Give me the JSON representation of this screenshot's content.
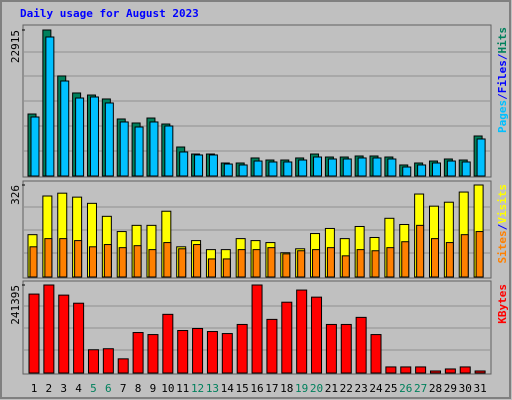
{
  "chart_data": [
    {
      "type": "bar",
      "title": "Daily usage for August 2023",
      "ylim": [
        0,
        22915
      ],
      "yticks": [
        22915
      ],
      "legend_items": [
        {
          "text": "Pages",
          "color": "#00c0ff"
        },
        {
          "text": "/",
          "color": "#0000ff"
        },
        {
          "text": "Files",
          "color": "#0000ff"
        },
        {
          "text": "/",
          "color": "#0000ff"
        },
        {
          "text": "Hits",
          "color": "#00805c"
        }
      ],
      "series": [
        {
          "name": "Hits",
          "color": "#00805c",
          "values": [
            9730,
            22915,
            15700,
            13030,
            12710,
            12090,
            8950,
            8320,
            9100,
            8160,
            4550,
            3450,
            3450,
            2040,
            2040,
            2830,
            2510,
            2510,
            2830,
            3450,
            2980,
            2980,
            3140,
            3140,
            2980,
            1730,
            2040,
            2350,
            2670,
            2510,
            6280
          ]
        },
        {
          "name": "Pages",
          "color": "#00c0ff",
          "values": [
            9260,
            21816,
            14910,
            12240,
            12400,
            11460,
            8480,
            7690,
            8480,
            7850,
            3770,
            3300,
            3300,
            1880,
            1730,
            2350,
            2200,
            2200,
            2510,
            2980,
            2670,
            2670,
            2830,
            2830,
            2670,
            1410,
            1730,
            2040,
            2350,
            2200,
            5810
          ]
        }
      ]
    },
    {
      "type": "bar",
      "ylim": [
        0,
        326
      ],
      "yticks": [
        326
      ],
      "legend_items": [
        {
          "text": "Sites",
          "color": "#ff8000"
        },
        {
          "text": "/",
          "color": "#0000ff"
        },
        {
          "text": "Visits",
          "color": "#ffff00"
        }
      ],
      "series": [
        {
          "name": "Visits",
          "color": "#ffff00",
          "values": [
            150,
            287,
            297,
            283,
            261,
            215,
            161,
            183,
            183,
            233,
            107,
            129,
            97,
            97,
            136,
            129,
            122,
            86,
            100,
            154,
            172,
            136,
            179,
            140,
            208,
            186,
            294,
            251,
            265,
            301,
            326
          ]
        },
        {
          "name": "Sites",
          "color": "#ff8000",
          "values": [
            107,
            136,
            136,
            129,
            107,
            115,
            104,
            111,
            97,
            122,
            100,
            115,
            64,
            64,
            97,
            97,
            104,
            82,
            93,
            97,
            104,
            75,
            97,
            93,
            104,
            125,
            183,
            136,
            122,
            150,
            161
          ]
        }
      ]
    },
    {
      "type": "bar",
      "ylim": [
        0,
        241395
      ],
      "yticks": [
        241395
      ],
      "legend_items": [
        {
          "text": "KBytes",
          "color": "#ff0000"
        }
      ],
      "categories": [
        "1",
        "2",
        "3",
        "4",
        "5",
        "6",
        "7",
        "8",
        "9",
        "10",
        "11",
        "12",
        "13",
        "14",
        "15",
        "16",
        "17",
        "18",
        "19",
        "20",
        "21",
        "22",
        "23",
        "24",
        "25",
        "26",
        "27",
        "28",
        "29",
        "30",
        "31"
      ],
      "category_colors": [
        "#000000",
        "#000000",
        "#000000",
        "#000000",
        "#00805c",
        "#00805c",
        "#000000",
        "#000000",
        "#000000",
        "#000000",
        "#000000",
        "#00805c",
        "#00805c",
        "#000000",
        "#000000",
        "#000000",
        "#000000",
        "#000000",
        "#00805c",
        "#00805c",
        "#000000",
        "#000000",
        "#000000",
        "#000000",
        "#000000",
        "#00805c",
        "#00805c",
        "#000000",
        "#000000",
        "#000000",
        "#000000"
      ],
      "series": [
        {
          "name": "KBytes",
          "color": "#ff0000",
          "values": [
            216500,
            241395,
            213650,
            191450,
            63820,
            66590,
            38850,
            111000,
            105430,
            160930,
            116540,
            122090,
            113760,
            108210,
            133180,
            241395,
            147060,
            194220,
            227520,
            208100,
            133180,
            133180,
            152610,
            105430,
            16650,
            16650,
            16650,
            5550,
            11100,
            16650,
            5550
          ]
        }
      ]
    }
  ]
}
